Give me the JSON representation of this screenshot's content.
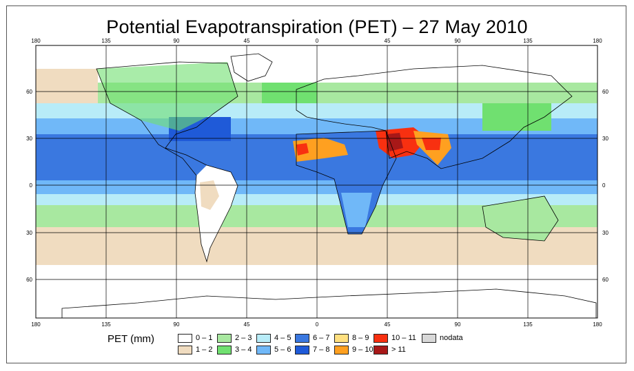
{
  "title": "Potential Evapotranspiration (PET) – 27 May 2010",
  "axes": {
    "lon_labels_top": [
      "180",
      "135",
      "90",
      "45",
      "0",
      "45",
      "90",
      "135",
      "180"
    ],
    "lon_labels_bottom": [
      "180",
      "135",
      "90",
      "45",
      "0",
      "45",
      "90",
      "135",
      "180"
    ],
    "lat_labels_left": [
      "60",
      "30",
      "0",
      "30",
      "60"
    ],
    "lat_labels_right": [
      "60",
      "30",
      "0",
      "30",
      "60"
    ]
  },
  "legend": {
    "title": "PET (mm)",
    "items": [
      {
        "label": "0 – 1",
        "color": "#ffffff"
      },
      {
        "label": "1 – 2",
        "color": "#f0dcc0"
      },
      {
        "label": "2 – 3",
        "color": "#a8e8a0"
      },
      {
        "label": "3 – 4",
        "color": "#70e070"
      },
      {
        "label": "4 – 5",
        "color": "#b8ecf8"
      },
      {
        "label": "5 – 6",
        "color": "#70b8f8"
      },
      {
        "label": "6 – 7",
        "color": "#3a78e0"
      },
      {
        "label": "7 – 8",
        "color": "#1f5ad8"
      },
      {
        "label": "8 – 9",
        "color": "#ffe080"
      },
      {
        "label": "9 – 10",
        "color": "#ffa020"
      },
      {
        "label": "10 – 11",
        "color": "#f83010"
      },
      {
        "label": "> 11",
        "color": "#a81818"
      },
      {
        "label": "nodata",
        "color": "#d8d8d8"
      }
    ]
  },
  "colors": {
    "ocean_trop": "#3a78e0",
    "gridline": "#000000",
    "coast": "#000000"
  }
}
